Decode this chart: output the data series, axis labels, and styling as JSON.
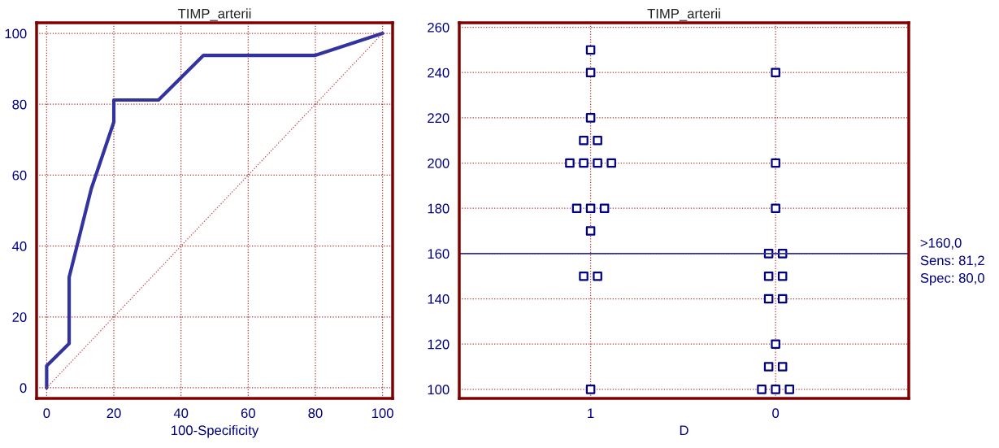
{
  "chart_data": [
    {
      "type": "line",
      "title": "TIMP_arterii",
      "xlabel": "100-Specificity",
      "xlim": [
        -3,
        103
      ],
      "ylim": [
        -3,
        103
      ],
      "xticks": [
        0,
        20,
        40,
        60,
        80,
        100
      ],
      "yticks": [
        0,
        20,
        40,
        60,
        80,
        100
      ],
      "grid": true,
      "marker": "none",
      "series": [
        {
          "color": "#3333a0",
          "line_style": "solid",
          "x": [
            0,
            0,
            6.7,
            6.7,
            13.3,
            20,
            20,
            33.3,
            46.7,
            80,
            100
          ],
          "values": [
            0,
            6.2,
            12.5,
            31.2,
            56.2,
            75,
            81.2,
            81.2,
            93.8,
            93.8,
            100
          ]
        },
        {
          "color": "#c04040",
          "line_style": "dotted",
          "x": [
            0,
            100
          ],
          "values": [
            0,
            100
          ]
        }
      ]
    },
    {
      "type": "scatter",
      "title": "TIMP_arterii",
      "xlabel": "D",
      "categories": [
        "1",
        "0"
      ],
      "ylim": [
        96,
        262
      ],
      "yticks": [
        100,
        120,
        140,
        160,
        180,
        200,
        220,
        240,
        260
      ],
      "grid": true,
      "marker": "square",
      "series": [
        {
          "color": "#000080",
          "x": [
            "1",
            "1",
            "1",
            "1",
            "1",
            "1",
            "1",
            "1",
            "1",
            "1",
            "1",
            "1",
            "1",
            "1",
            "1",
            "1",
            "0",
            "0",
            "0",
            "0",
            "0",
            "0",
            "0",
            "0",
            "0",
            "0",
            "0",
            "0",
            "0",
            "0",
            "0"
          ],
          "values": [
            250,
            240,
            220,
            210,
            210,
            200,
            200,
            200,
            200,
            180,
            180,
            180,
            170,
            150,
            150,
            100,
            240,
            200,
            180,
            160,
            160,
            150,
            150,
            140,
            140,
            120,
            110,
            110,
            100,
            100,
            100
          ]
        }
      ],
      "ref_lines": [
        {
          "axis": "y",
          "value": 160,
          "label": ">160,0\nSens: 81,2\nSpec: 80,0",
          "color": "#3333a0",
          "line_style": "solid"
        }
      ]
    }
  ]
}
